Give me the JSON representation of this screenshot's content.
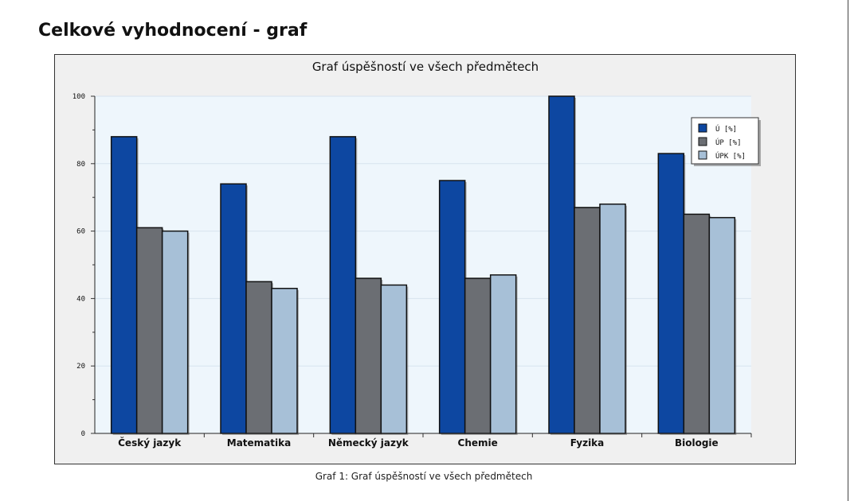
{
  "page": {
    "heading": "Celkové vyhodnocení - graf",
    "caption": "Graf 1: Graf úspěšností ve všech předmětech"
  },
  "chart_data": {
    "type": "bar",
    "title": "Graf úspěšností ve všech předmětech",
    "categories": [
      "Český jazyk",
      "Matematika",
      "Německý jazyk",
      "Chemie",
      "Fyzika",
      "Biologie"
    ],
    "series": [
      {
        "name": "Ú [%]",
        "color": "#0d47a1",
        "values": [
          88,
          74,
          88,
          75,
          100,
          83
        ]
      },
      {
        "name": "ÚP [%]",
        "color": "#6b6e73",
        "values": [
          61,
          45,
          46,
          46,
          67,
          65
        ]
      },
      {
        "name": "ÚPK [%]",
        "color": "#a7c0d7",
        "values": [
          60,
          43,
          44,
          47,
          68,
          64
        ]
      }
    ],
    "ylim": [
      0,
      100
    ],
    "yticks": [
      "0",
      "20",
      "40",
      "60",
      "80",
      "100"
    ],
    "grid": true,
    "legend_position": "top-right",
    "plot_background": "#eef6fc",
    "frame_background": "#f0f0f0"
  }
}
